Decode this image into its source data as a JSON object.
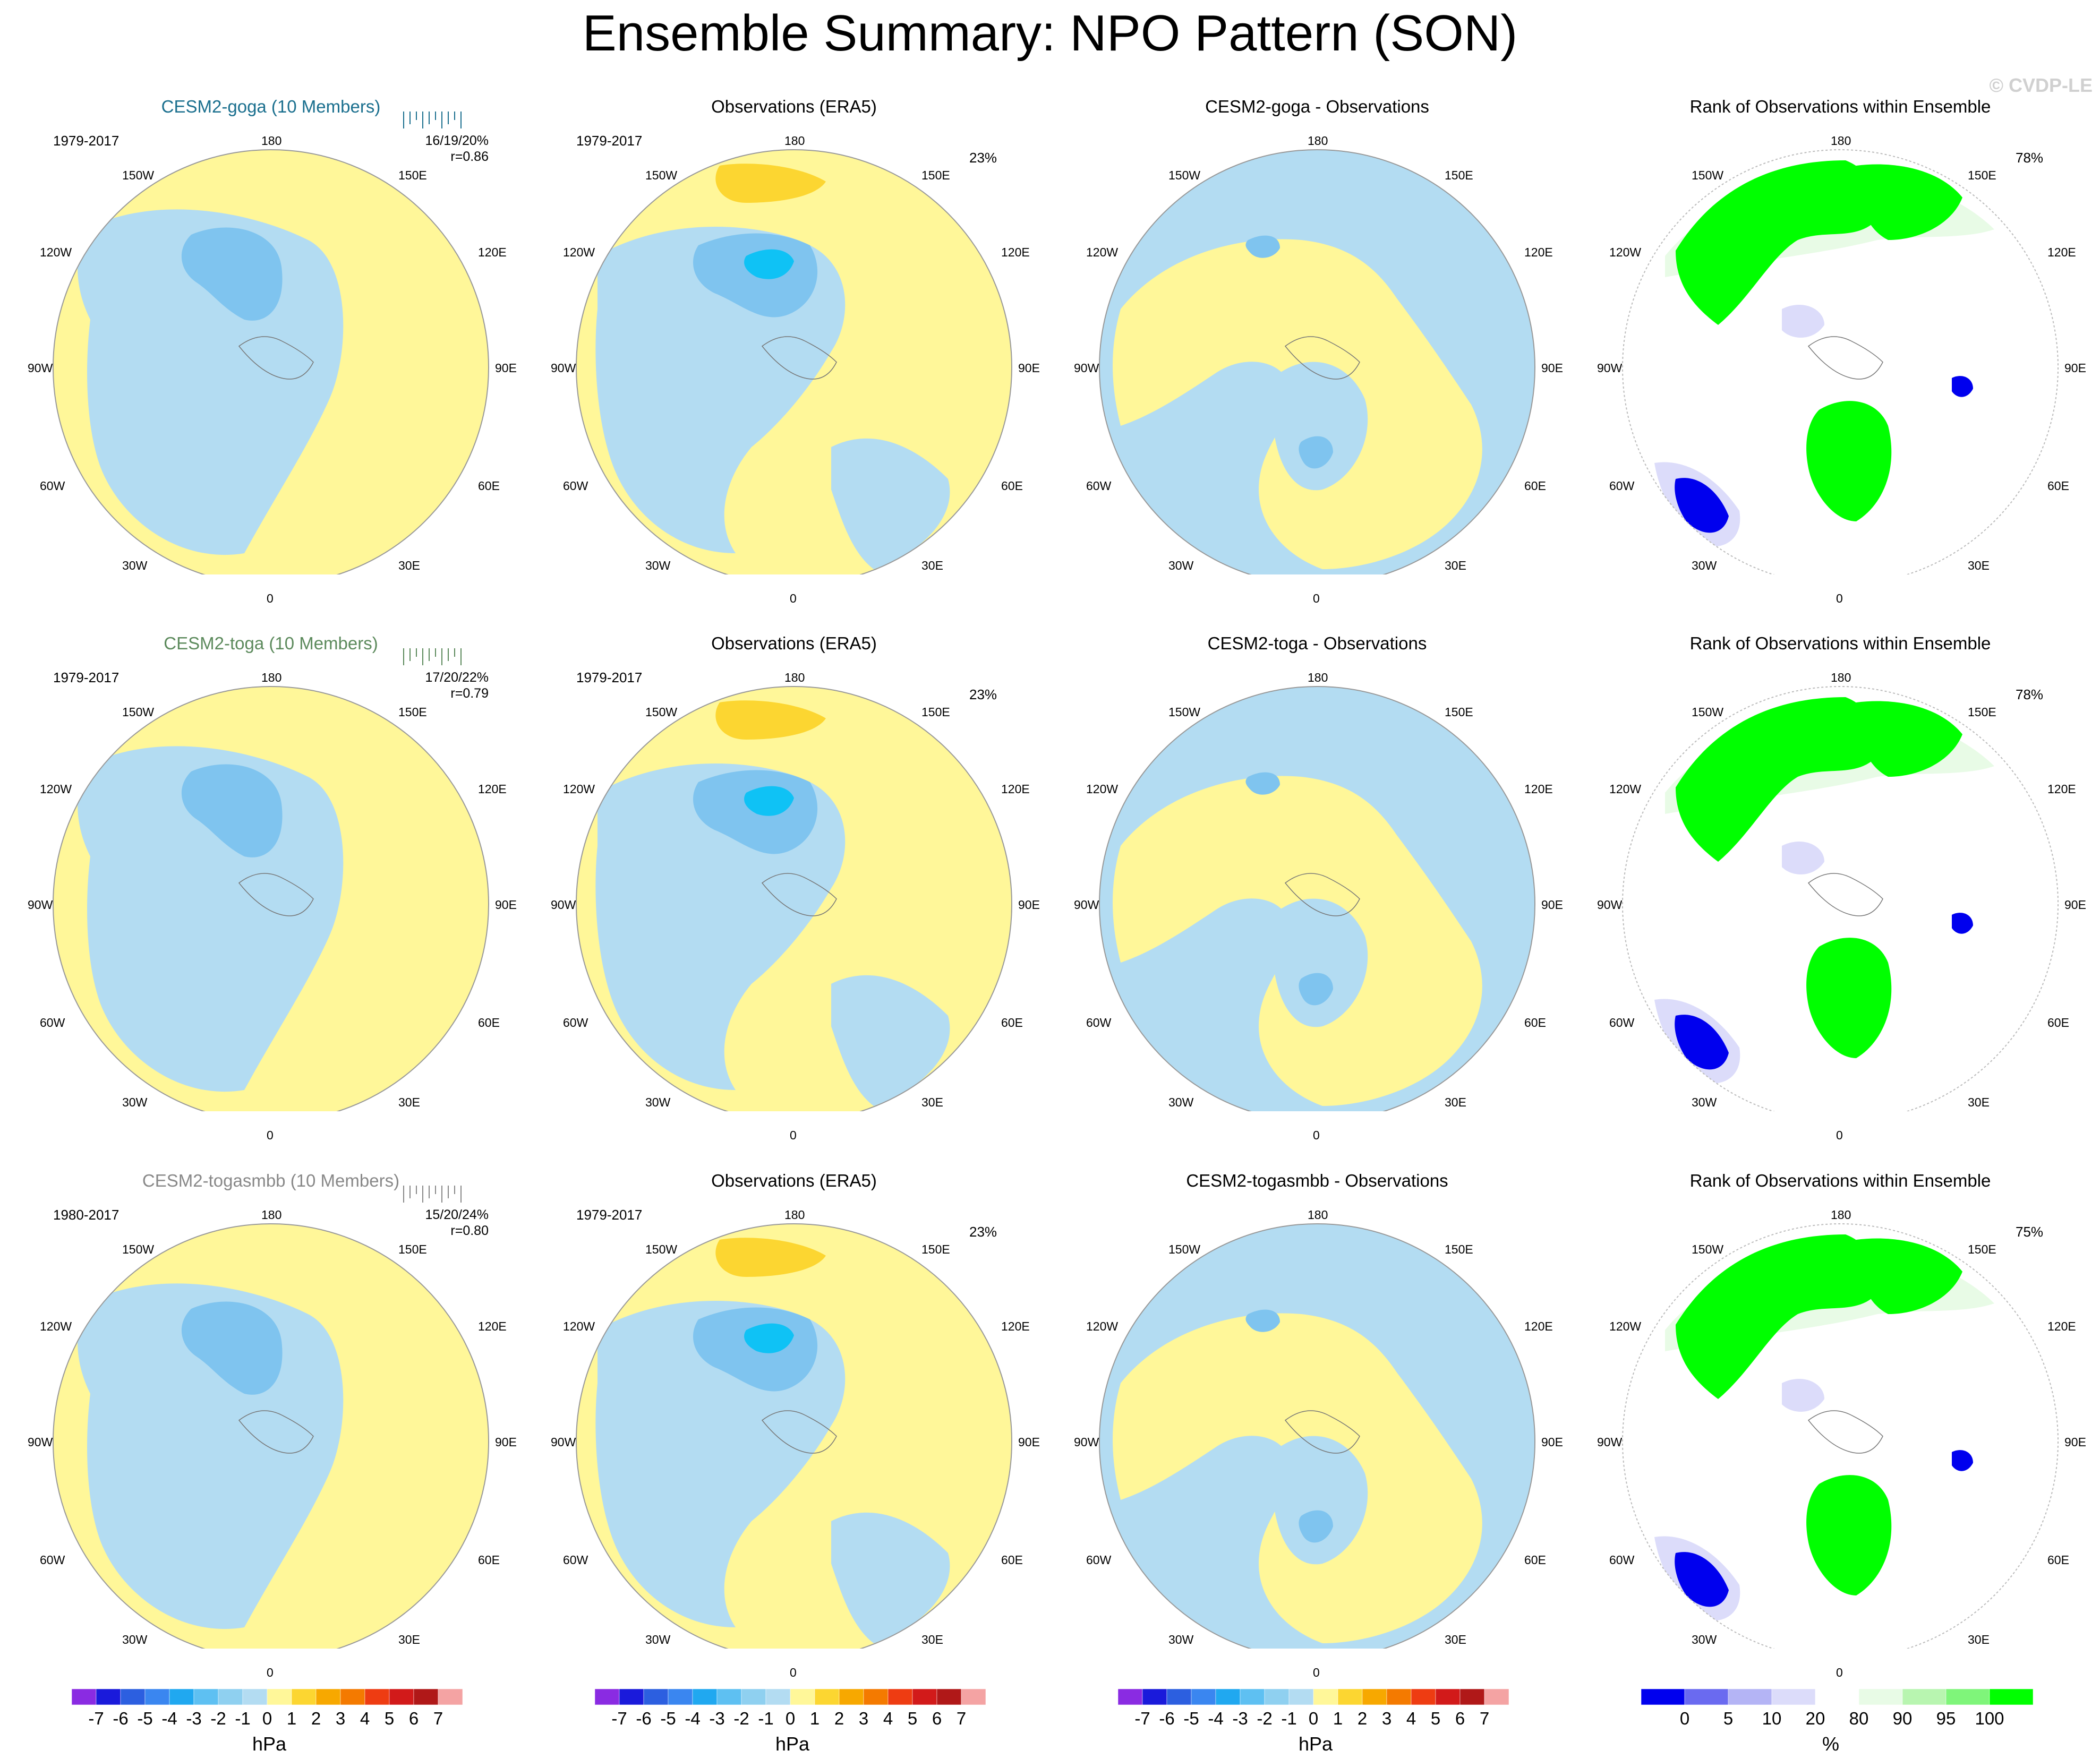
{
  "figure_title": "Ensemble Summary: NPO Pattern (SON)",
  "watermark": "© CVDP-LE",
  "colors": {
    "ocean_neg1": "#b3dcf2",
    "neg2": "#7fc4ef",
    "neg3": "#4ea6ee",
    "neg4": "#0fc2f5",
    "pos1": "#fff799",
    "pos2": "#fcd631",
    "rank_green": "#00ff00",
    "rank_blue": "#0000ee",
    "rank_lightblue": "#dcdcfa",
    "rank_lightgreen": "#e8fbe6",
    "member_title_1": "#1a6f8e",
    "member_title_2": "#5c8a5c",
    "member_title_3": "#888888"
  },
  "longitude_labels": {
    "top": "180",
    "bottom": "0",
    "left_upper": "150W",
    "right_upper": "150E",
    "left_mid_upper": "120W",
    "right_mid_upper": "120E",
    "left_mid": "90W",
    "right_mid": "90E",
    "left_mid_lower": "60W",
    "right_mid_lower": "60E",
    "left_lower": "30W",
    "right_lower": "30E"
  },
  "rows": [
    {
      "ensemble": {
        "title": "CESM2-goga (10 Members)",
        "years": "1979-2017",
        "stat": "16/19/20%",
        "r": "r=0.86"
      },
      "obs": {
        "title": "Observations (ERA5)",
        "years": "1979-2017",
        "pct": "23%"
      },
      "diff": {
        "title": "CESM2-goga - Observations"
      },
      "rank": {
        "title": "Rank of Observations within Ensemble",
        "pct": "78%"
      }
    },
    {
      "ensemble": {
        "title": "CESM2-toga (10 Members)",
        "years": "1979-2017",
        "stat": "17/20/22%",
        "r": "r=0.79"
      },
      "obs": {
        "title": "Observations (ERA5)",
        "years": "1979-2017",
        "pct": "23%"
      },
      "diff": {
        "title": "CESM2-toga - Observations"
      },
      "rank": {
        "title": "Rank of Observations within Ensemble",
        "pct": "78%"
      }
    },
    {
      "ensemble": {
        "title": "CESM2-togasmbb (10 Members)",
        "years": "1980-2017",
        "stat": "15/20/24%",
        "r": "r=0.80"
      },
      "obs": {
        "title": "Observations (ERA5)",
        "years": "1979-2017",
        "pct": "23%"
      },
      "diff": {
        "title": "CESM2-togasmbb - Observations"
      },
      "rank": {
        "title": "Rank of Observations within Ensemble",
        "pct": "75%"
      }
    }
  ],
  "colorbar_hpa": {
    "unit": "hPa",
    "ticks": [
      "-7",
      "-6",
      "-5",
      "-4",
      "-3",
      "-2",
      "-1",
      "0",
      "1",
      "2",
      "3",
      "4",
      "5",
      "6",
      "7"
    ],
    "colors": [
      "#8a2be2",
      "#1a1adb",
      "#2c5fe0",
      "#3a86f0",
      "#20a8f0",
      "#5ec0f2",
      "#8fd0f0",
      "#b3dcf2",
      "#fff799",
      "#fcd631",
      "#f7a800",
      "#f47a00",
      "#ee3c12",
      "#d21a1a",
      "#b01818",
      "#f4a3a3"
    ]
  },
  "colorbar_rank": {
    "unit": "%",
    "ticks": [
      "0",
      "5",
      "10",
      "20",
      "80",
      "90",
      "95",
      "100"
    ],
    "colors": [
      "#0000ee",
      "#6a6af0",
      "#b4b4f5",
      "#dcdcfa",
      "#ffffff",
      "#e8fbe6",
      "#b8f5b0",
      "#7ff57a",
      "#00ff00"
    ]
  }
}
